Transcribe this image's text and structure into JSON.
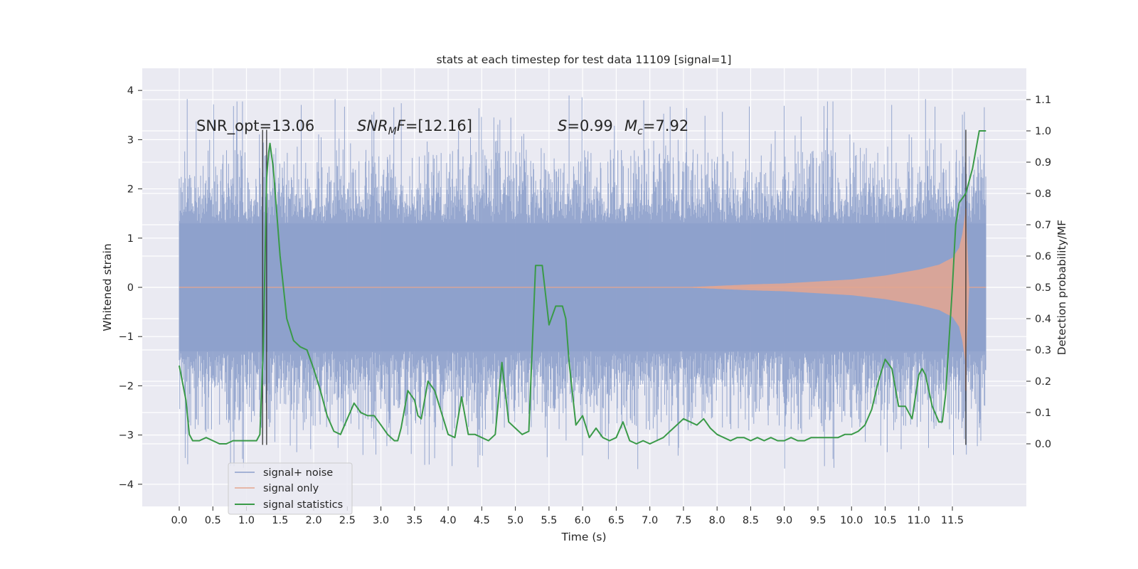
{
  "chart_data": {
    "type": "line",
    "title": "stats at each timestep for test data 11109 [signal=1]",
    "xlabel": "Time (s)",
    "ylabel": "Whitened strain",
    "ylabel_right": "Detection probability/MF",
    "xlim": [
      -0.55,
      12.6
    ],
    "ylim": [
      -4.45,
      4.45
    ],
    "ylim_right": [
      -0.2,
      1.2
    ],
    "x_ticks": [
      0.0,
      0.5,
      1.0,
      1.5,
      2.0,
      2.5,
      3.0,
      3.5,
      4.0,
      4.5,
      5.0,
      5.5,
      6.0,
      6.5,
      7.0,
      7.5,
      8.0,
      8.5,
      9.0,
      9.5,
      10.0,
      10.5,
      11.0,
      11.5
    ],
    "x_tick_labels": [
      "0.0",
      "0.5",
      "1.0",
      "1.5",
      "2.0",
      "2.5",
      "3.0",
      "3.5",
      "4.0",
      "4.5",
      "5.0",
      "5.5",
      "6.0",
      "6.5",
      "7.0",
      "7.5",
      "8.0",
      "8.5",
      "9.0",
      "9.5",
      "10.0",
      "10.5",
      "11.0",
      "11.5"
    ],
    "y_ticks": [
      -4,
      -3,
      -2,
      -1,
      0,
      1,
      2,
      3,
      4
    ],
    "y_tick_labels": [
      "−4",
      "−3",
      "−2",
      "−1",
      "0",
      "1",
      "2",
      "3",
      "4"
    ],
    "y_right_ticks": [
      0.0,
      0.1,
      0.2,
      0.3,
      0.4,
      0.5,
      0.6,
      0.7,
      0.8,
      0.9,
      1.0,
      1.1
    ],
    "y_right_tick_labels": [
      "0.0",
      "0.1",
      "0.2",
      "0.3",
      "0.4",
      "0.5",
      "0.6",
      "0.7",
      "0.8",
      "0.9",
      "1.0",
      "1.1"
    ],
    "grid": true,
    "legend_position": "lower-left",
    "annotations": {
      "snr_opt": "SNR_opt=13.06",
      "snr_mf_main": "SNR",
      "snr_mf_sub": "M",
      "snr_mf_f": "F",
      "snr_mf_value": "=[12.16]",
      "s_sym": "S",
      "s_value": "=0.99",
      "mc_sym": "M",
      "mc_sub": "c",
      "mc_value": "=7.92"
    },
    "colors": {
      "noise": "#8da0cb",
      "signal": "#e5a68f",
      "stats": "#3a9a48",
      "vline": "#333333",
      "background": "#eaeaf2",
      "grid": "#ffffff"
    },
    "series": [
      {
        "name": "signal+ noise",
        "axis": "left",
        "x_range": [
          0.0,
          12.0
        ],
        "core_amplitude": 1.3,
        "spike_max": 4.1,
        "spike_min": -4.05
      },
      {
        "name": "signal only",
        "axis": "left",
        "envelope": {
          "t": [
            7.5,
            8.0,
            8.5,
            9.0,
            9.5,
            10.0,
            10.5,
            11.0,
            11.3,
            11.5,
            11.6,
            11.65,
            11.7,
            11.75,
            12.0
          ],
          "amp": [
            0.0,
            0.03,
            0.06,
            0.08,
            0.12,
            0.16,
            0.24,
            0.36,
            0.46,
            0.6,
            0.8,
            1.1,
            1.6,
            0.0,
            0.0
          ]
        }
      },
      {
        "name": "signal statistics",
        "axis": "right",
        "x": [
          0.0,
          0.1,
          0.15,
          0.2,
          0.3,
          0.4,
          0.5,
          0.6,
          0.7,
          0.8,
          0.9,
          1.0,
          1.1,
          1.15,
          1.2,
          1.25,
          1.3,
          1.33,
          1.35,
          1.4,
          1.5,
          1.6,
          1.7,
          1.8,
          1.9,
          2.0,
          2.1,
          2.2,
          2.3,
          2.4,
          2.5,
          2.6,
          2.7,
          2.8,
          2.9,
          3.0,
          3.1,
          3.2,
          3.25,
          3.3,
          3.4,
          3.5,
          3.55,
          3.6,
          3.7,
          3.8,
          3.9,
          4.0,
          4.1,
          4.2,
          4.3,
          4.4,
          4.5,
          4.6,
          4.7,
          4.8,
          4.9,
          5.0,
          5.1,
          5.2,
          5.3,
          5.4,
          5.5,
          5.6,
          5.65,
          5.7,
          5.75,
          5.8,
          5.9,
          6.0,
          6.1,
          6.2,
          6.3,
          6.4,
          6.5,
          6.6,
          6.7,
          6.8,
          6.9,
          7.0,
          7.1,
          7.2,
          7.3,
          7.4,
          7.5,
          7.6,
          7.7,
          7.8,
          7.9,
          8.0,
          8.1,
          8.2,
          8.3,
          8.4,
          8.5,
          8.6,
          8.7,
          8.8,
          8.9,
          9.0,
          9.1,
          9.2,
          9.3,
          9.4,
          9.5,
          9.6,
          9.7,
          9.8,
          9.9,
          10.0,
          10.1,
          10.2,
          10.3,
          10.4,
          10.5,
          10.6,
          10.7,
          10.8,
          10.9,
          11.0,
          11.05,
          11.1,
          11.2,
          11.3,
          11.35,
          11.4,
          11.5,
          11.55,
          11.6,
          11.7,
          11.8,
          11.9,
          12.0
        ],
        "values": [
          0.25,
          0.14,
          0.03,
          0.01,
          0.01,
          0.02,
          0.01,
          0.0,
          0.0,
          0.01,
          0.01,
          0.01,
          0.01,
          0.01,
          0.03,
          0.3,
          0.85,
          0.93,
          0.96,
          0.88,
          0.6,
          0.4,
          0.33,
          0.31,
          0.3,
          0.24,
          0.17,
          0.09,
          0.04,
          0.03,
          0.08,
          0.13,
          0.1,
          0.09,
          0.09,
          0.06,
          0.03,
          0.01,
          0.01,
          0.05,
          0.17,
          0.14,
          0.09,
          0.08,
          0.2,
          0.17,
          0.1,
          0.03,
          0.02,
          0.15,
          0.03,
          0.03,
          0.02,
          0.01,
          0.03,
          0.26,
          0.07,
          0.05,
          0.03,
          0.04,
          0.57,
          0.57,
          0.38,
          0.44,
          0.44,
          0.44,
          0.4,
          0.26,
          0.06,
          0.09,
          0.02,
          0.05,
          0.02,
          0.01,
          0.02,
          0.07,
          0.01,
          0.0,
          0.01,
          0.0,
          0.01,
          0.02,
          0.04,
          0.06,
          0.08,
          0.07,
          0.06,
          0.08,
          0.05,
          0.03,
          0.02,
          0.01,
          0.02,
          0.02,
          0.01,
          0.02,
          0.01,
          0.02,
          0.01,
          0.01,
          0.02,
          0.01,
          0.01,
          0.02,
          0.02,
          0.02,
          0.02,
          0.02,
          0.03,
          0.03,
          0.04,
          0.06,
          0.11,
          0.2,
          0.27,
          0.24,
          0.12,
          0.12,
          0.08,
          0.22,
          0.24,
          0.22,
          0.12,
          0.07,
          0.07,
          0.16,
          0.5,
          0.7,
          0.77,
          0.8,
          0.88,
          1.0,
          1.0
        ]
      }
    ],
    "vlines": [
      {
        "x": 1.24,
        "ymin": -3.2,
        "ymax": 3.2
      },
      {
        "x": 1.3,
        "ymin": -3.2,
        "ymax": 3.2
      },
      {
        "x": 11.7,
        "ymin": -3.2,
        "ymax": 3.2
      }
    ],
    "legend": [
      "signal+ noise",
      "signal only",
      "signal statistics"
    ]
  }
}
